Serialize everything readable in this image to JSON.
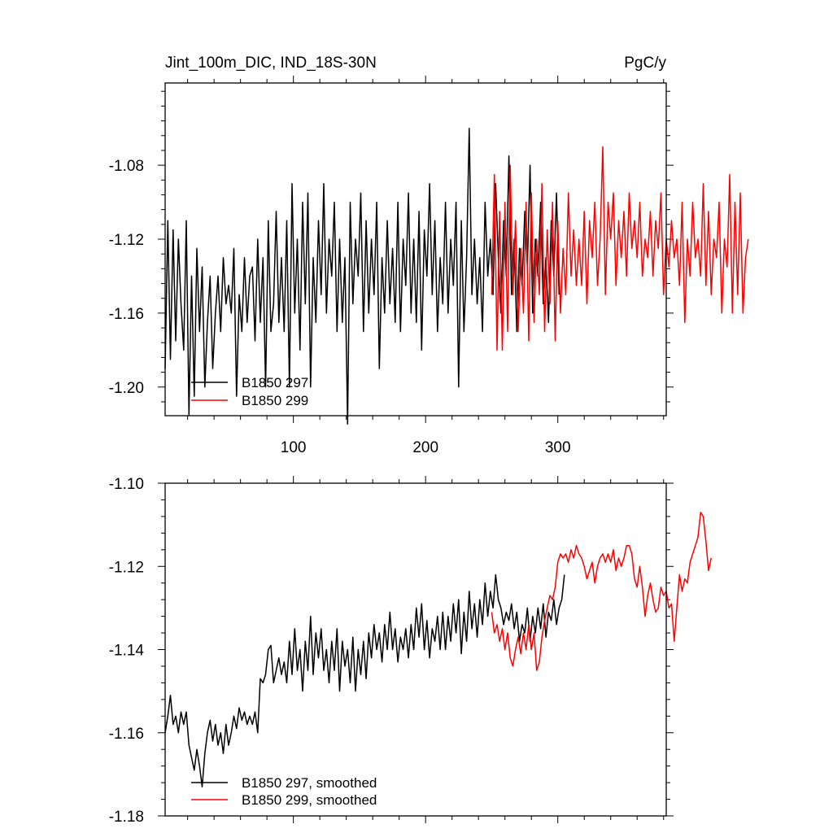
{
  "chart_data": [
    {
      "type": "line",
      "title": "Jint_100m_DIC, IND_18S-30N",
      "units": "PgC/y",
      "xlim": [
        3,
        382
      ],
      "ylim": [
        -1.2155,
        -1.0355
      ],
      "x_ticks": [
        100,
        200,
        300
      ],
      "x_tick_labels": [
        "100",
        "200",
        "300"
      ],
      "y_ticks": [
        -1.08,
        -1.12,
        -1.16,
        -1.2
      ],
      "y_tick_labels": [
        "-1.08",
        "-1.12",
        "-1.16",
        "-1.20"
      ],
      "legend": {
        "position": "bottom-left",
        "entries": [
          "B1850 297",
          "B1850 299"
        ]
      },
      "series": [
        {
          "name": "B1850 297",
          "color": "#000000",
          "x_start": 3,
          "x_step": 2,
          "values": [
            -1.19,
            -1.11,
            -1.185,
            -1.115,
            -1.175,
            -1.12,
            -1.155,
            -1.18,
            -1.11,
            -1.215,
            -1.14,
            -1.205,
            -1.125,
            -1.17,
            -1.135,
            -1.2,
            -1.165,
            -1.14,
            -1.19,
            -1.16,
            -1.14,
            -1.17,
            -1.13,
            -1.155,
            -1.145,
            -1.16,
            -1.125,
            -1.205,
            -1.15,
            -1.17,
            -1.13,
            -1.165,
            -1.14,
            -1.135,
            -1.175,
            -1.12,
            -1.165,
            -1.13,
            -1.2,
            -1.11,
            -1.17,
            -1.155,
            -1.105,
            -1.165,
            -1.13,
            -1.17,
            -1.11,
            -1.2,
            -1.09,
            -1.16,
            -1.12,
            -1.18,
            -1.1,
            -1.155,
            -1.095,
            -1.2,
            -1.13,
            -1.165,
            -1.11,
            -1.15,
            -1.09,
            -1.16,
            -1.12,
            -1.14,
            -1.1,
            -1.17,
            -1.12,
            -1.165,
            -1.13,
            -1.22,
            -1.1,
            -1.155,
            -1.12,
            -1.14,
            -1.095,
            -1.17,
            -1.11,
            -1.16,
            -1.12,
            -1.15,
            -1.1,
            -1.19,
            -1.13,
            -1.16,
            -1.11,
            -1.155,
            -1.125,
            -1.165,
            -1.1,
            -1.17,
            -1.12,
            -1.145,
            -1.095,
            -1.16,
            -1.12,
            -1.165,
            -1.105,
            -1.18,
            -1.115,
            -1.14,
            -1.09,
            -1.15,
            -1.11,
            -1.17,
            -1.13,
            -1.155,
            -1.1,
            -1.16,
            -1.12,
            -1.145,
            -1.1,
            -1.2,
            -1.11,
            -1.17,
            -1.13,
            -1.06,
            -1.15,
            -1.12,
            -1.155,
            -1.13,
            -1.17,
            -1.1,
            -1.14,
            -1.12,
            -1.15,
            -1.09,
            -1.13,
            -1.16,
            -1.11,
            -1.14,
            -1.075,
            -1.15,
            -1.12,
            -1.17,
            -1.125,
            -1.145,
            -1.105,
            -1.135,
            -1.08,
            -1.16,
            -1.12,
            -1.14,
            -1.1,
            -1.155,
            -1.13,
            -1.165,
            -1.11,
            -1.14,
            -1.095,
            -1.15
          ]
        },
        {
          "name": "B1850 299",
          "color": "#ff0000",
          "x_start": 250,
          "x_step": 2,
          "values": [
            -1.15,
            -1.085,
            -1.18,
            -1.105,
            -1.18,
            -1.1,
            -1.17,
            -1.08,
            -1.15,
            -1.11,
            -1.17,
            -1.125,
            -1.16,
            -1.1,
            -1.175,
            -1.095,
            -1.165,
            -1.12,
            -1.15,
            -1.09,
            -1.17,
            -1.115,
            -1.155,
            -1.1,
            -1.175,
            -1.11,
            -1.16,
            -1.125,
            -1.15,
            -1.095,
            -1.14,
            -1.115,
            -1.145,
            -1.12,
            -1.145,
            -1.105,
            -1.155,
            -1.11,
            -1.13,
            -1.1,
            -1.145,
            -1.12,
            -1.07,
            -1.15,
            -1.1,
            -1.12,
            -1.095,
            -1.145,
            -1.11,
            -1.13,
            -1.105,
            -1.14,
            -1.095,
            -1.125,
            -1.11,
            -1.13,
            -1.1,
            -1.14,
            -1.12,
            -1.13,
            -1.105,
            -1.14,
            -1.11,
            -1.125,
            -1.095,
            -1.15,
            -1.12,
            -1.135,
            -1.11,
            -1.13,
            -1.12,
            -1.145,
            -1.1,
            -1.165,
            -1.12,
            -1.14,
            -1.1,
            -1.13,
            -1.12,
            -1.14,
            -1.09,
            -1.145,
            -1.105,
            -1.15,
            -1.12,
            -1.13,
            -1.1,
            -1.16,
            -1.12,
            -1.135,
            -1.085,
            -1.16,
            -1.1,
            -1.15,
            -1.095,
            -1.16,
            -1.13,
            -1.12
          ]
        }
      ]
    },
    {
      "type": "line",
      "title": "",
      "xlim": [
        3,
        382
      ],
      "ylim": [
        -1.18,
        -1.1
      ],
      "y_ticks": [
        -1.1,
        -1.12,
        -1.14,
        -1.16,
        -1.18
      ],
      "y_tick_labels": [
        "-1.10",
        "-1.12",
        "-1.14",
        "-1.16",
        "-1.18"
      ],
      "legend": {
        "position": "bottom-left",
        "entries": [
          "B1850 297, smoothed",
          "B1850 299, smoothed"
        ]
      },
      "series": [
        {
          "name": "B1850 297, smoothed",
          "color": "#000000",
          "x_start": 3,
          "x_step": 2,
          "values": [
            -1.16,
            -1.156,
            -1.151,
            -1.158,
            -1.156,
            -1.16,
            -1.155,
            -1.158,
            -1.155,
            -1.163,
            -1.166,
            -1.169,
            -1.164,
            -1.168,
            -1.173,
            -1.165,
            -1.16,
            -1.157,
            -1.162,
            -1.158,
            -1.163,
            -1.16,
            -1.165,
            -1.158,
            -1.163,
            -1.16,
            -1.156,
            -1.159,
            -1.154,
            -1.157,
            -1.155,
            -1.158,
            -1.156,
            -1.158,
            -1.155,
            -1.16,
            -1.147,
            -1.148,
            -1.146,
            -1.14,
            -1.139,
            -1.148,
            -1.145,
            -1.142,
            -1.146,
            -1.143,
            -1.148,
            -1.138,
            -1.146,
            -1.135,
            -1.145,
            -1.14,
            -1.15,
            -1.138,
            -1.145,
            -1.132,
            -1.146,
            -1.136,
            -1.142,
            -1.135,
            -1.145,
            -1.14,
            -1.148,
            -1.138,
            -1.145,
            -1.135,
            -1.15,
            -1.138,
            -1.144,
            -1.14,
            -1.148,
            -1.137,
            -1.15,
            -1.14,
            -1.146,
            -1.138,
            -1.147,
            -1.136,
            -1.142,
            -1.134,
            -1.14,
            -1.136,
            -1.143,
            -1.134,
            -1.14,
            -1.131,
            -1.14,
            -1.135,
            -1.143,
            -1.137,
            -1.14,
            -1.135,
            -1.142,
            -1.134,
            -1.14,
            -1.13,
            -1.137,
            -1.129,
            -1.14,
            -1.133,
            -1.142,
            -1.135,
            -1.138,
            -1.132,
            -1.14,
            -1.131,
            -1.14,
            -1.132,
            -1.138,
            -1.129,
            -1.136,
            -1.128,
            -1.141,
            -1.131,
            -1.138,
            -1.126,
            -1.135,
            -1.129,
            -1.137,
            -1.128,
            -1.134,
            -1.124,
            -1.132,
            -1.126,
            -1.13,
            -1.122,
            -1.128,
            -1.13,
            -1.134,
            -1.131,
            -1.133,
            -1.129,
            -1.135,
            -1.131,
            -1.138,
            -1.134,
            -1.136,
            -1.13,
            -1.138,
            -1.132,
            -1.136,
            -1.13,
            -1.135,
            -1.129,
            -1.137,
            -1.131,
            -1.133,
            -1.128,
            -1.134,
            -1.13,
            -1.128,
            -1.122
          ]
        },
        {
          "name": "B1850 299, smoothed",
          "color": "#ff0000",
          "x_start": 250,
          "x_step": 2,
          "values": [
            -1.131,
            -1.136,
            -1.134,
            -1.138,
            -1.135,
            -1.14,
            -1.136,
            -1.142,
            -1.144,
            -1.14,
            -1.137,
            -1.141,
            -1.136,
            -1.14,
            -1.134,
            -1.14,
            -1.136,
            -1.145,
            -1.143,
            -1.137,
            -1.133,
            -1.13,
            -1.127,
            -1.128,
            -1.125,
            -1.119,
            -1.117,
            -1.118,
            -1.117,
            -1.119,
            -1.116,
            -1.118,
            -1.115,
            -1.117,
            -1.118,
            -1.12,
            -1.123,
            -1.121,
            -1.119,
            -1.124,
            -1.12,
            -1.118,
            -1.117,
            -1.119,
            -1.117,
            -1.119,
            -1.116,
            -1.121,
            -1.118,
            -1.12,
            -1.118,
            -1.115,
            -1.115,
            -1.117,
            -1.123,
            -1.125,
            -1.12,
            -1.125,
            -1.132,
            -1.127,
            -1.124,
            -1.128,
            -1.131,
            -1.13,
            -1.125,
            -1.127,
            -1.126,
            -1.13,
            -1.129,
            -1.138,
            -1.13,
            -1.122,
            -1.126,
            -1.123,
            -1.124,
            -1.119,
            -1.117,
            -1.115,
            -1.113,
            -1.107,
            -1.108,
            -1.114,
            -1.121,
            -1.118
          ]
        }
      ]
    }
  ]
}
